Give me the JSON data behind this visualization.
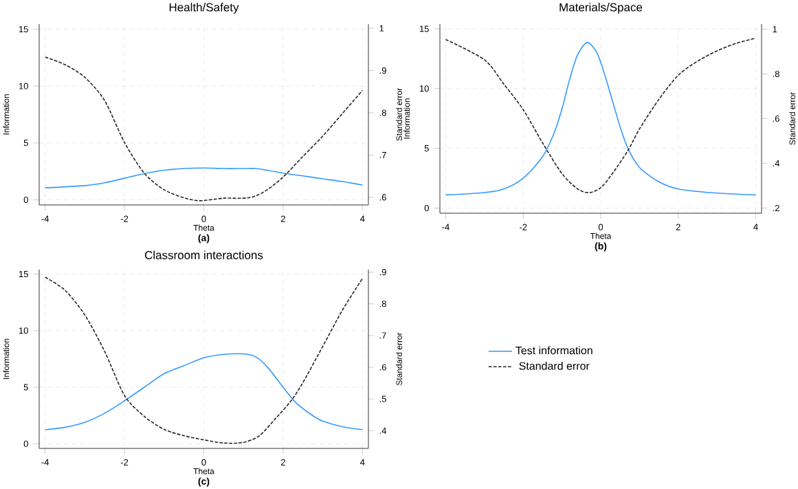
{
  "chart_data": [
    {
      "type": "line",
      "title": "Health/Safety",
      "xlabel": "Theta",
      "ylabel": "Information",
      "y2label": "Standard error",
      "annotations": [
        "(a)"
      ],
      "grid": true,
      "marker": "none",
      "xlim": [
        -4.15,
        4.15
      ],
      "xticks": [
        -4,
        -2,
        0,
        2,
        4
      ],
      "ylim": [
        -0.45,
        15.45
      ],
      "yticks": [
        0,
        5,
        10,
        15
      ],
      "y2lim": [
        0.582,
        1.01
      ],
      "y2ticks": [
        {
          "value": 0.6,
          "label": ".6"
        },
        {
          "value": 0.7,
          "label": ".7"
        },
        {
          "value": 0.8,
          "label": ".8"
        },
        {
          "value": 0.9,
          "label": ".9"
        },
        {
          "value": 1,
          "label": "1"
        }
      ],
      "series": [
        {
          "color": "#3399ff",
          "line_style": "solid",
          "x": [
            -4,
            -3,
            -2.5,
            -2,
            -1.5,
            -1,
            -0.5,
            0,
            0.5,
            1,
            1.3,
            1.6,
            2,
            2.5,
            3,
            3.5,
            4
          ],
          "values": [
            1.05,
            1.25,
            1.5,
            1.9,
            2.3,
            2.6,
            2.75,
            2.8,
            2.75,
            2.75,
            2.75,
            2.6,
            2.35,
            2.1,
            1.85,
            1.6,
            1.3
          ]
        },
        {
          "color": "#222222",
          "line_style": "dashed",
          "axis": "y2",
          "x": [
            -4,
            -3.5,
            -3,
            -2.5,
            -2,
            -1.5,
            -1,
            -0.5,
            -0.1,
            0.5,
            1,
            1.3,
            1.6,
            2,
            2.5,
            3,
            3.5,
            4
          ],
          "values": [
            0.932,
            0.914,
            0.884,
            0.829,
            0.73,
            0.657,
            0.618,
            0.599,
            0.592,
            0.598,
            0.598,
            0.603,
            0.618,
            0.648,
            0.697,
            0.745,
            0.799,
            0.853
          ]
        }
      ]
    },
    {
      "type": "line",
      "title": "Materials/Space",
      "xlabel": "Theta",
      "ylabel": "Information",
      "y2label": "Standard error",
      "annotations": [
        "(b)"
      ],
      "grid": true,
      "marker": "none",
      "xlim": [
        -4.15,
        4.15
      ],
      "xticks": [
        -4,
        -2,
        0,
        2,
        4
      ],
      "ylim": [
        -0.43,
        15.4
      ],
      "yticks": [
        0,
        5,
        10,
        15
      ],
      "y2lim": [
        0.177,
        1.023
      ],
      "y2ticks": [
        {
          "value": 0.2,
          "label": ".2"
        },
        {
          "value": 0.4,
          "label": ".4"
        },
        {
          "value": 0.6,
          "label": ".6"
        },
        {
          "value": 0.8,
          "label": ".8"
        },
        {
          "value": 1,
          "label": "1"
        }
      ],
      "series": [
        {
          "color": "#3399ff",
          "line_style": "solid",
          "x": [
            -4,
            -3,
            -2.5,
            -2,
            -1.5,
            -1.2,
            -1,
            -0.8,
            -0.6,
            -0.35,
            -0.1,
            0.1,
            0.3,
            0.5,
            0.7,
            1,
            1.5,
            2,
            3,
            4
          ],
          "values": [
            1.1,
            1.3,
            1.6,
            2.5,
            4.3,
            6.3,
            8.3,
            10.8,
            12.8,
            13.85,
            13.0,
            11.2,
            9.0,
            6.8,
            5.0,
            3.4,
            2.2,
            1.6,
            1.25,
            1.1
          ]
        },
        {
          "color": "#222222",
          "line_style": "dashed",
          "axis": "y2",
          "x": [
            -4,
            -3,
            -2.5,
            -2,
            -1.5,
            -1,
            -0.6,
            -0.3,
            0,
            0.3,
            0.7,
            1,
            1.5,
            2,
            2.5,
            3,
            3.5,
            4
          ],
          "values": [
            0.954,
            0.863,
            0.754,
            0.64,
            0.491,
            0.354,
            0.286,
            0.269,
            0.291,
            0.354,
            0.457,
            0.554,
            0.686,
            0.794,
            0.857,
            0.903,
            0.937,
            0.96
          ]
        }
      ]
    },
    {
      "type": "line",
      "title": "Classroom interactions",
      "xlabel": "Theta",
      "ylabel": "Information",
      "y2label": "Standard error",
      "annotations": [
        "(c)"
      ],
      "grid": true,
      "marker": "none",
      "legend": "right",
      "xlim": [
        -4.15,
        4.15
      ],
      "xticks": [
        -4,
        -2,
        0,
        2,
        4
      ],
      "ylim": [
        -0.41,
        15.4
      ],
      "yticks": [
        0,
        5,
        10,
        15
      ],
      "y2lim": [
        0.344,
        0.908
      ],
      "y2ticks": [
        {
          "value": 0.4,
          "label": ".4"
        },
        {
          "value": 0.5,
          "label": ".5"
        },
        {
          "value": 0.6,
          "label": ".6"
        },
        {
          "value": 0.7,
          "label": ".7"
        },
        {
          "value": 0.8,
          "label": ".8"
        },
        {
          "value": 0.9,
          "label": ".9"
        }
      ],
      "series": [
        {
          "name": "Test information",
          "color": "#3399ff",
          "line_style": "solid",
          "x": [
            -4,
            -3.5,
            -3,
            -2.5,
            -2,
            -1.5,
            -1,
            -0.5,
            0,
            0.5,
            1,
            1.3,
            1.6,
            2,
            2.3,
            2.7,
            3,
            3.5,
            4
          ],
          "values": [
            1.25,
            1.45,
            1.9,
            2.7,
            3.8,
            5.0,
            6.2,
            6.9,
            7.6,
            7.9,
            7.95,
            7.7,
            6.8,
            5.0,
            3.7,
            2.6,
            2.0,
            1.5,
            1.25
          ]
        },
        {
          "name": "Standard error",
          "color": "#222222",
          "line_style": "dashed",
          "axis": "y2",
          "x": [
            -4,
            -3.5,
            -3,
            -2.5,
            -2,
            -1.5,
            -1,
            -0.5,
            0,
            0.5,
            1,
            1.4,
            1.8,
            2.2,
            2.5,
            3,
            3.5,
            4
          ],
          "values": [
            0.884,
            0.843,
            0.765,
            0.65,
            0.511,
            0.445,
            0.404,
            0.384,
            0.371,
            0.361,
            0.363,
            0.384,
            0.437,
            0.494,
            0.552,
            0.666,
            0.781,
            0.88
          ]
        }
      ]
    }
  ]
}
